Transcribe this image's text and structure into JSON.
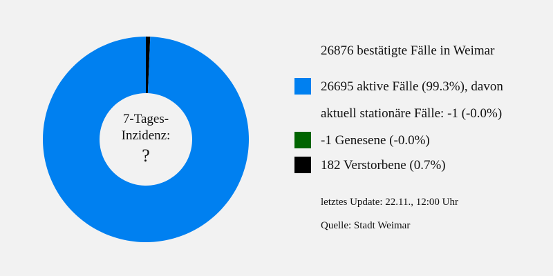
{
  "chart_data": {
    "type": "pie",
    "title": "26876 bestätigte Fälle in Weimar",
    "categories": [
      "aktive Fälle",
      "Genesene",
      "Verstorbene"
    ],
    "values": [
      26695,
      -1,
      182
    ],
    "colors": [
      "#0080f0",
      "#006400",
      "#000000"
    ],
    "donut": true,
    "center_label": {
      "line1": "7-Tages-",
      "line2": "Inzidenz:",
      "value": "?"
    }
  },
  "legend": {
    "total_line": "26876 bestätigte Fälle in Weimar",
    "active_line": "26695 aktive Fälle (99.3%), davon",
    "hospital_line": "aktuell stationäre Fälle: -1 (-0.0%)",
    "recovered_line": "-1 Genesene (-0.0%)",
    "deaths_line": "182 Verstorbene (0.7%)",
    "update_line": "letztes Update: 22.11., 12:00 Uhr",
    "source_line": "Quelle: Stadt Weimar"
  },
  "colors": {
    "background": "#f2f2f2",
    "active": "#0080f0",
    "recovered": "#006400",
    "deaths": "#000000"
  }
}
